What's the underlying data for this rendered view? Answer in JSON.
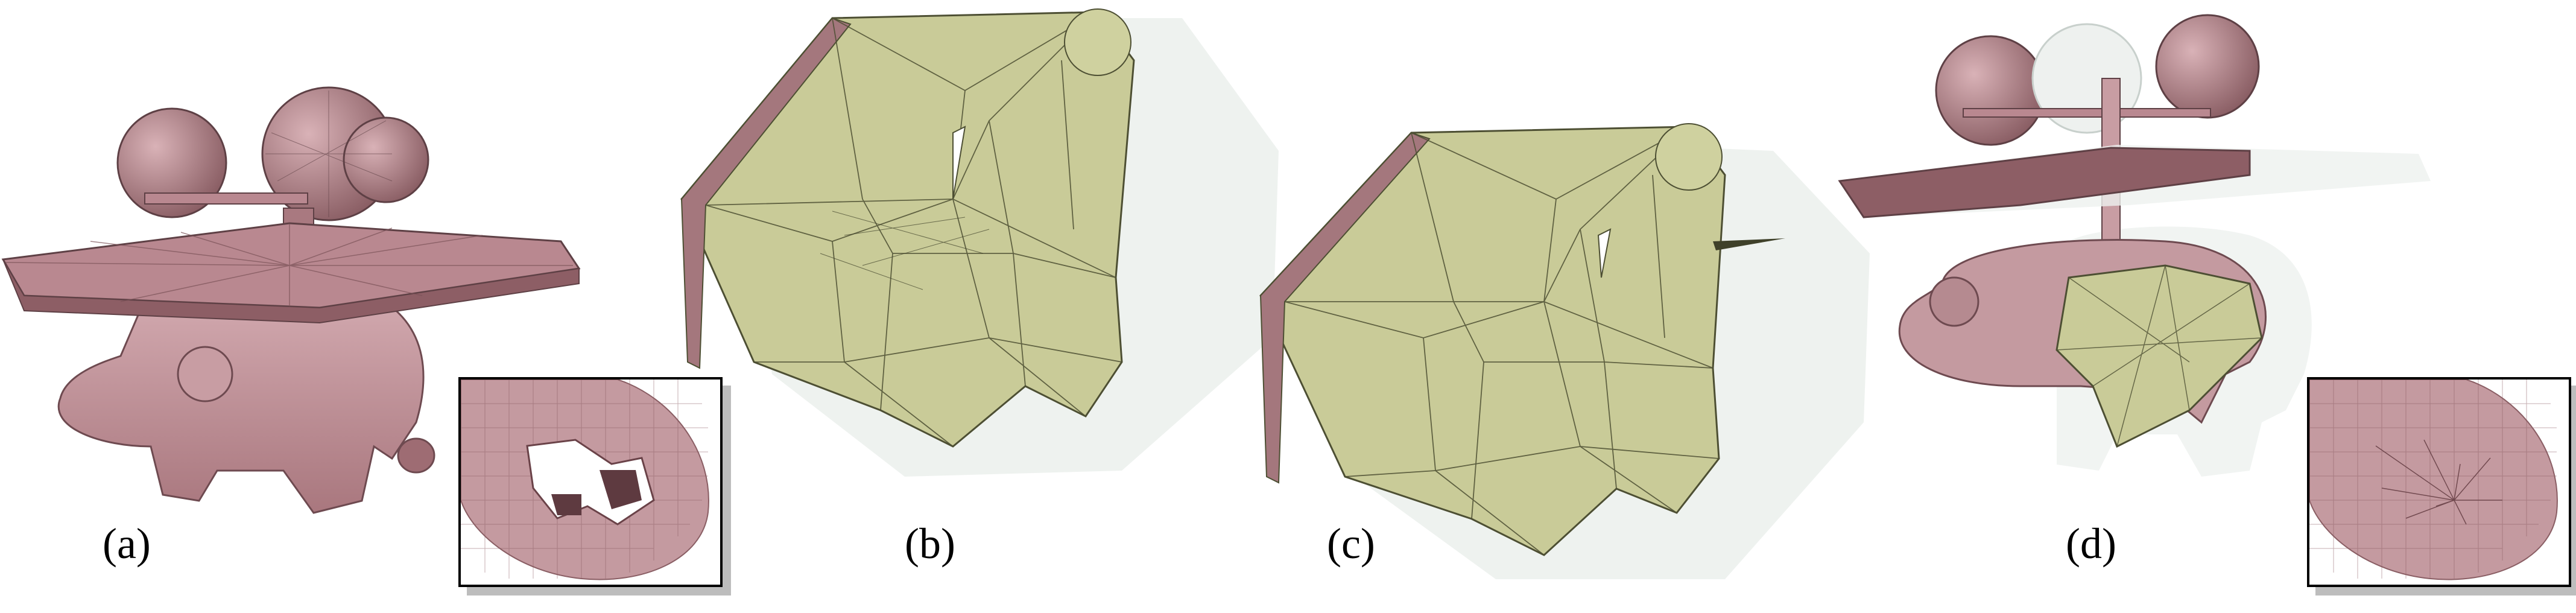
{
  "figure": {
    "panels": [
      {
        "id": "a",
        "label": "(a)"
      },
      {
        "id": "b",
        "label": "(b)"
      },
      {
        "id": "c",
        "label": "(c)"
      },
      {
        "id": "d",
        "label": "(d)"
      }
    ],
    "colors": {
      "mesh_pink": "#b98890",
      "mesh_pink_dark": "#7d5258",
      "hull_olive": "#c9cb98",
      "hull_olive_dark": "#8c8f5b",
      "ghost": "#e6ebe8",
      "outline": "#2b2b2b"
    }
  }
}
